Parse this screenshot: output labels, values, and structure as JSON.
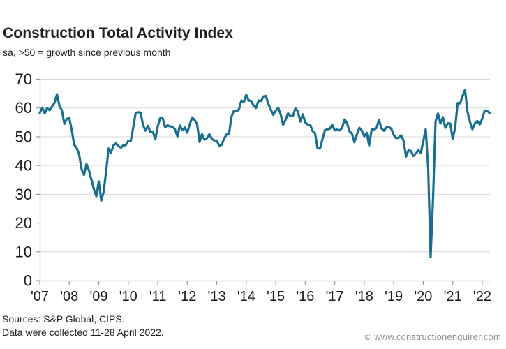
{
  "header": {
    "title": "Construction Total Activity Index",
    "subtitle": "sa, >50 = growth since previous month"
  },
  "footer": {
    "sources": "Sources: S&P Global, CIPS.",
    "collection_note": "Data were collected 11-28 April 2022.",
    "watermark": "© www.constructionenquirer.com"
  },
  "colors": {
    "line": "#186f8e",
    "grid": "#d9d9d9",
    "axis": "#9b9b9b",
    "text": "#1a1a1a"
  },
  "chart_data": {
    "type": "line",
    "title": "Construction Total Activity Index",
    "subtitle": "sa, >50 = growth since previous month",
    "frequency": "monthly",
    "x_start": "2007-01",
    "x_end": "2022-04",
    "x_tick_labels": [
      "'07",
      "'08",
      "'09",
      "'10",
      "'11",
      "'12",
      "'13",
      "'14",
      "'15",
      "'16",
      "'17",
      "'18",
      "'19",
      "'20",
      "'21",
      "'22"
    ],
    "y_ticks": [
      0,
      10,
      20,
      30,
      40,
      50,
      60,
      70
    ],
    "ylim": [
      0,
      70
    ],
    "grid": "horizontal",
    "legend_position": "none",
    "series": [
      {
        "name": "Construction Total Activity Index",
        "color": "#186f8e",
        "values": [
          58.2,
          60.1,
          58.1,
          60.0,
          59.2,
          60.5,
          61.8,
          64.8,
          60.8,
          59.1,
          54.5,
          56.2,
          56.5,
          52.4,
          47.2,
          46.1,
          43.9,
          38.8,
          36.7,
          40.5,
          38.3,
          35.1,
          31.8,
          29.3,
          34.5,
          27.8,
          30.9,
          38.1,
          45.9,
          44.5,
          47.0,
          47.7,
          46.7,
          46.2,
          47.0,
          47.1,
          48.6,
          48.5,
          53.1,
          58.2,
          58.5,
          58.4,
          54.1,
          52.1,
          53.8,
          51.6,
          51.8,
          49.1,
          53.7,
          56.5,
          56.4,
          53.3,
          54.0,
          53.6,
          53.5,
          52.6,
          50.1,
          53.9,
          52.3,
          53.2,
          51.4,
          54.3,
          56.7,
          55.8,
          54.4,
          48.2,
          50.9,
          49.0,
          49.5,
          50.9,
          49.3,
          48.7,
          48.7,
          46.8,
          47.2,
          49.4,
          50.8,
          51.0,
          57.0,
          59.1,
          58.9,
          59.4,
          62.6,
          62.1,
          64.6,
          62.6,
          62.5,
          60.8,
          60.0,
          62.6,
          62.4,
          64.0,
          64.2,
          61.4,
          59.4,
          57.6,
          59.1,
          60.1,
          57.8,
          54.2,
          55.9,
          58.1,
          57.1,
          57.3,
          59.9,
          58.8,
          55.3,
          57.8,
          55.0,
          54.2,
          54.2,
          52.0,
          51.2,
          46.0,
          45.9,
          49.2,
          52.3,
          52.6,
          52.8,
          54.2,
          52.2,
          52.5,
          52.2,
          53.1,
          56.0,
          54.8,
          51.9,
          51.1,
          48.1,
          50.8,
          53.1,
          52.2,
          50.2,
          51.4,
          47.0,
          52.5,
          52.5,
          53.1,
          55.8,
          52.9,
          52.1,
          53.2,
          53.4,
          52.8,
          50.6,
          49.5,
          49.7,
          50.5,
          48.6,
          43.1,
          45.3,
          45.0,
          43.3,
          44.2,
          45.3,
          44.4,
          48.4,
          52.6,
          39.3,
          8.2,
          28.9,
          55.3,
          58.1,
          54.6,
          56.8,
          53.1,
          54.7,
          54.6,
          49.2,
          53.3,
          61.7,
          61.6,
          64.2,
          66.3,
          58.7,
          55.2,
          52.6,
          54.6,
          55.5,
          54.3,
          56.3,
          59.1,
          59.1,
          58.2
        ]
      }
    ]
  }
}
